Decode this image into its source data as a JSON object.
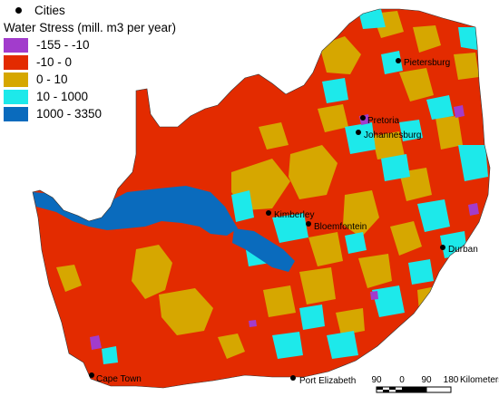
{
  "legend": {
    "cities_label": "Cities",
    "title": "Water Stress (mill. m3 per year)",
    "classes": [
      {
        "label": "-155 - -10",
        "color": "#a23ccc"
      },
      {
        "label": "-10 - 0",
        "color": "#e32b00"
      },
      {
        "label": "0 - 10",
        "color": "#d6a700"
      },
      {
        "label": "10 - 1000",
        "color": "#1de9ea"
      },
      {
        "label": "1000 - 3350",
        "color": "#0a6bbd"
      }
    ]
  },
  "cities": [
    {
      "name": "Pietersburg"
    },
    {
      "name": "Pretoria"
    },
    {
      "name": "Johannesburg"
    },
    {
      "name": "Kimberley"
    },
    {
      "name": "Bloemfontein"
    },
    {
      "name": "Durban"
    },
    {
      "name": "Cape Town"
    },
    {
      "name": "Port Elizabeth"
    }
  ],
  "scale_bar": {
    "ticks": [
      "90",
      "0",
      "90",
      "180"
    ],
    "unit": "Kilometers"
  }
}
